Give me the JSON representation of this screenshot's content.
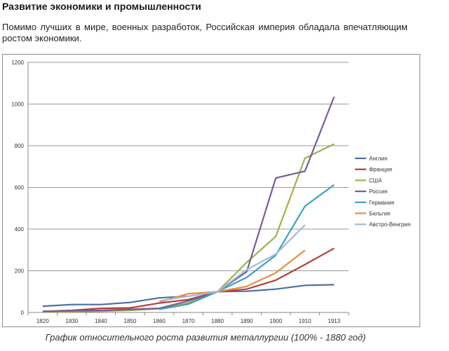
{
  "page": {
    "title": "Развитие экономики и промышленности",
    "intro": "Помимо лучших в мире, военных разработок, Российская империя обладала впечатляющим ростом экономики.",
    "caption": "График относительного роста развития металлургии (100% - 1880 год)"
  },
  "chart_data": {
    "type": "line",
    "title": "",
    "xlabel": "",
    "ylabel": "",
    "grid": true,
    "legend_position": "right",
    "x_ticks": [
      "1820",
      "1830",
      "1840",
      "1850",
      "1860",
      "1870",
      "1880",
      "1890",
      "1900",
      "1910",
      "1913"
    ],
    "ylim": [
      0,
      1200
    ],
    "y_ticks": [
      0,
      200,
      400,
      600,
      800,
      1000,
      1200
    ],
    "series": [
      {
        "name": "Англия",
        "color": "#4a6fa5",
        "points": [
          [
            1820,
            30
          ],
          [
            1830,
            38
          ],
          [
            1840,
            38
          ],
          [
            1850,
            48
          ],
          [
            1860,
            70
          ],
          [
            1870,
            78
          ],
          [
            1880,
            100
          ],
          [
            1890,
            102
          ],
          [
            1900,
            112
          ],
          [
            1910,
            130
          ],
          [
            1913,
            133
          ]
        ]
      },
      {
        "name": "Франция",
        "color": "#b5403c",
        "points": [
          [
            1820,
            5
          ],
          [
            1830,
            10
          ],
          [
            1840,
            20
          ],
          [
            1850,
            22
          ],
          [
            1860,
            45
          ],
          [
            1870,
            62
          ],
          [
            1880,
            100
          ],
          [
            1890,
            112
          ],
          [
            1900,
            155
          ],
          [
            1910,
            230
          ],
          [
            1913,
            308
          ]
        ]
      },
      {
        "name": "США",
        "color": "#98b44e",
        "points": [
          [
            1820,
            2
          ],
          [
            1830,
            4
          ],
          [
            1840,
            6
          ],
          [
            1850,
            10
          ],
          [
            1860,
            18
          ],
          [
            1870,
            45
          ],
          [
            1880,
            100
          ],
          [
            1890,
            240
          ],
          [
            1900,
            365
          ],
          [
            1910,
            740
          ],
          [
            1913,
            808
          ]
        ]
      },
      {
        "name": "Россия",
        "color": "#7a5b96",
        "points": [
          [
            1820,
            5
          ],
          [
            1830,
            8
          ],
          [
            1840,
            10
          ],
          [
            1850,
            15
          ],
          [
            1860,
            20
          ],
          [
            1870,
            55
          ],
          [
            1880,
            100
          ],
          [
            1890,
            195
          ],
          [
            1900,
            645
          ],
          [
            1910,
            678
          ],
          [
            1913,
            1035
          ]
        ]
      },
      {
        "name": "Германия",
        "color": "#3aa2bf",
        "points": [
          [
            1860,
            15
          ],
          [
            1870,
            40
          ],
          [
            1880,
            100
          ],
          [
            1890,
            168
          ],
          [
            1900,
            275
          ],
          [
            1910,
            510
          ],
          [
            1913,
            612
          ]
        ]
      },
      {
        "name": "Бельгия",
        "color": "#e58f3e",
        "points": [
          [
            1860,
            50
          ],
          [
            1870,
            90
          ],
          [
            1880,
            100
          ],
          [
            1890,
            125
          ],
          [
            1900,
            190
          ],
          [
            1910,
            298
          ]
        ]
      },
      {
        "name": "Австро-Венгрия",
        "color": "#a8b8d8",
        "points": [
          [
            1860,
            55
          ],
          [
            1870,
            78
          ],
          [
            1880,
            100
          ],
          [
            1890,
            205
          ],
          [
            1900,
            280
          ],
          [
            1910,
            420
          ]
        ]
      }
    ]
  }
}
